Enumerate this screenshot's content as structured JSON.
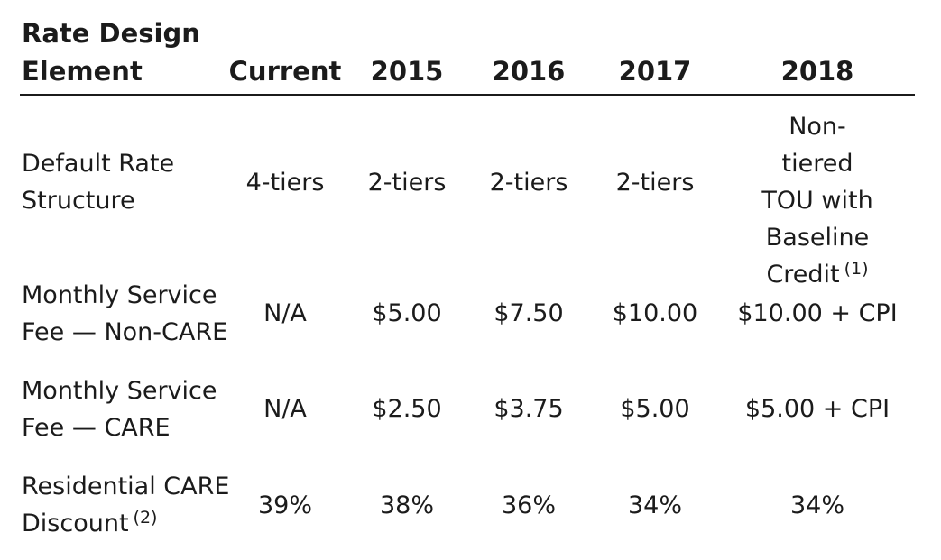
{
  "table": {
    "header": {
      "element_line1": "Rate Design",
      "element_line2": "Element",
      "columns": [
        "Current",
        "2015",
        "2016",
        "2017",
        "2018"
      ]
    },
    "rows": [
      {
        "label_lines": [
          "Default Rate",
          "Structure"
        ],
        "cells": [
          "4-tiers",
          "2-tiers",
          "2-tiers",
          "2-tiers"
        ],
        "last_cell_lines": [
          "Non-tiered",
          "TOU with",
          "Baseline",
          "Credit"
        ],
        "last_cell_note": "(1)"
      },
      {
        "label_lines": [
          "Monthly Service",
          "Fee — Non-CARE"
        ],
        "cells": [
          "N/A",
          "$5.00",
          "$7.50",
          "$10.00",
          "$10.00 + CPI"
        ]
      },
      {
        "label_lines": [
          "Monthly Service",
          "Fee — CARE"
        ],
        "cells": [
          "N/A",
          "$2.50",
          "$3.75",
          "$5.00",
          "$5.00 + CPI"
        ]
      },
      {
        "label_lines": [
          "Residential CARE",
          "Discount"
        ],
        "label_note": "(2)",
        "cells": [
          "39%",
          "38%",
          "36%",
          "34%",
          "34%"
        ]
      }
    ]
  }
}
